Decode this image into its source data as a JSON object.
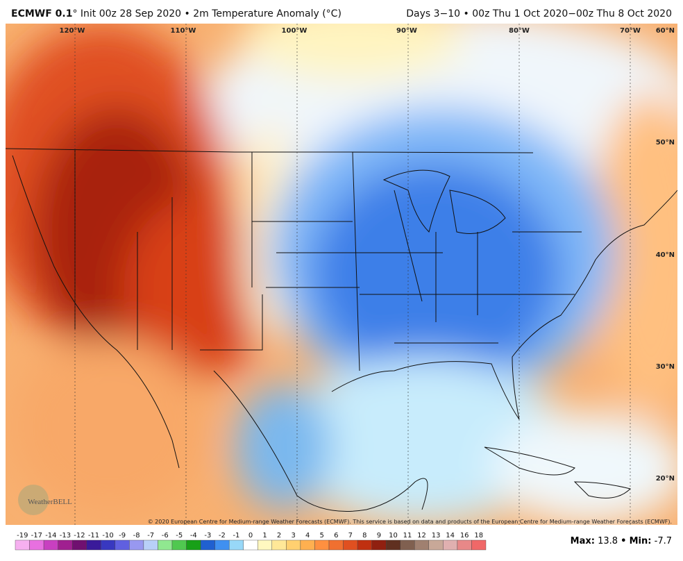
{
  "header": {
    "model": "ECMWF 0.1",
    "title_rest": "° Init 00z 28 Sep 2020 • 2m Temperature Anomaly (°C)",
    "period": "Days 3−10 • 00z Thu 1 Oct 2020−00z Thu 8 Oct 2020"
  },
  "map": {
    "longitude_labels": [
      "120°W",
      "110°W",
      "100°W",
      "90°W",
      "80°W",
      "70°W"
    ],
    "latitude_labels": [
      "60°N",
      "50°N",
      "40°N",
      "30°N",
      "20°N"
    ],
    "logo": "WeatherBELL",
    "copyright": "© 2020 European Centre for Medium-range Weather Forecasts (ECMWF). This service is based on data and products of the European Centre for Medium-range Weather Forecasts (ECMWF)."
  },
  "colorbar": {
    "labels": [
      -19,
      -17,
      -14,
      -13,
      -12,
      -11,
      -10,
      -9,
      -8,
      -7,
      -6,
      -5,
      -4,
      -3,
      -2,
      -1,
      0,
      1,
      2,
      3,
      4,
      5,
      6,
      7,
      8,
      9,
      10,
      11,
      12,
      13,
      14,
      16,
      18
    ],
    "colors": [
      "#f6b0f0",
      "#e870e0",
      "#c840c0",
      "#a02090",
      "#701070",
      "#3a1a9a",
      "#3838c0",
      "#6060e0",
      "#9898f0",
      "#b8d0f8",
      "#90e890",
      "#50c850",
      "#18a018",
      "#2060d0",
      "#4090f0",
      "#98d8f8",
      "#ffffff",
      "#fff8c0",
      "#ffe898",
      "#ffd070",
      "#ffb050",
      "#ff9040",
      "#f07030",
      "#e05020",
      "#c03010",
      "#902010",
      "#603020",
      "#806050",
      "#a08070",
      "#c8a898",
      "#e0b0b0",
      "#e88888",
      "#f06868"
    ]
  },
  "stats": {
    "max_label": "Max:",
    "max": 13.8,
    "separator": "•",
    "min_label": "Min:",
    "min": -7.7
  }
}
